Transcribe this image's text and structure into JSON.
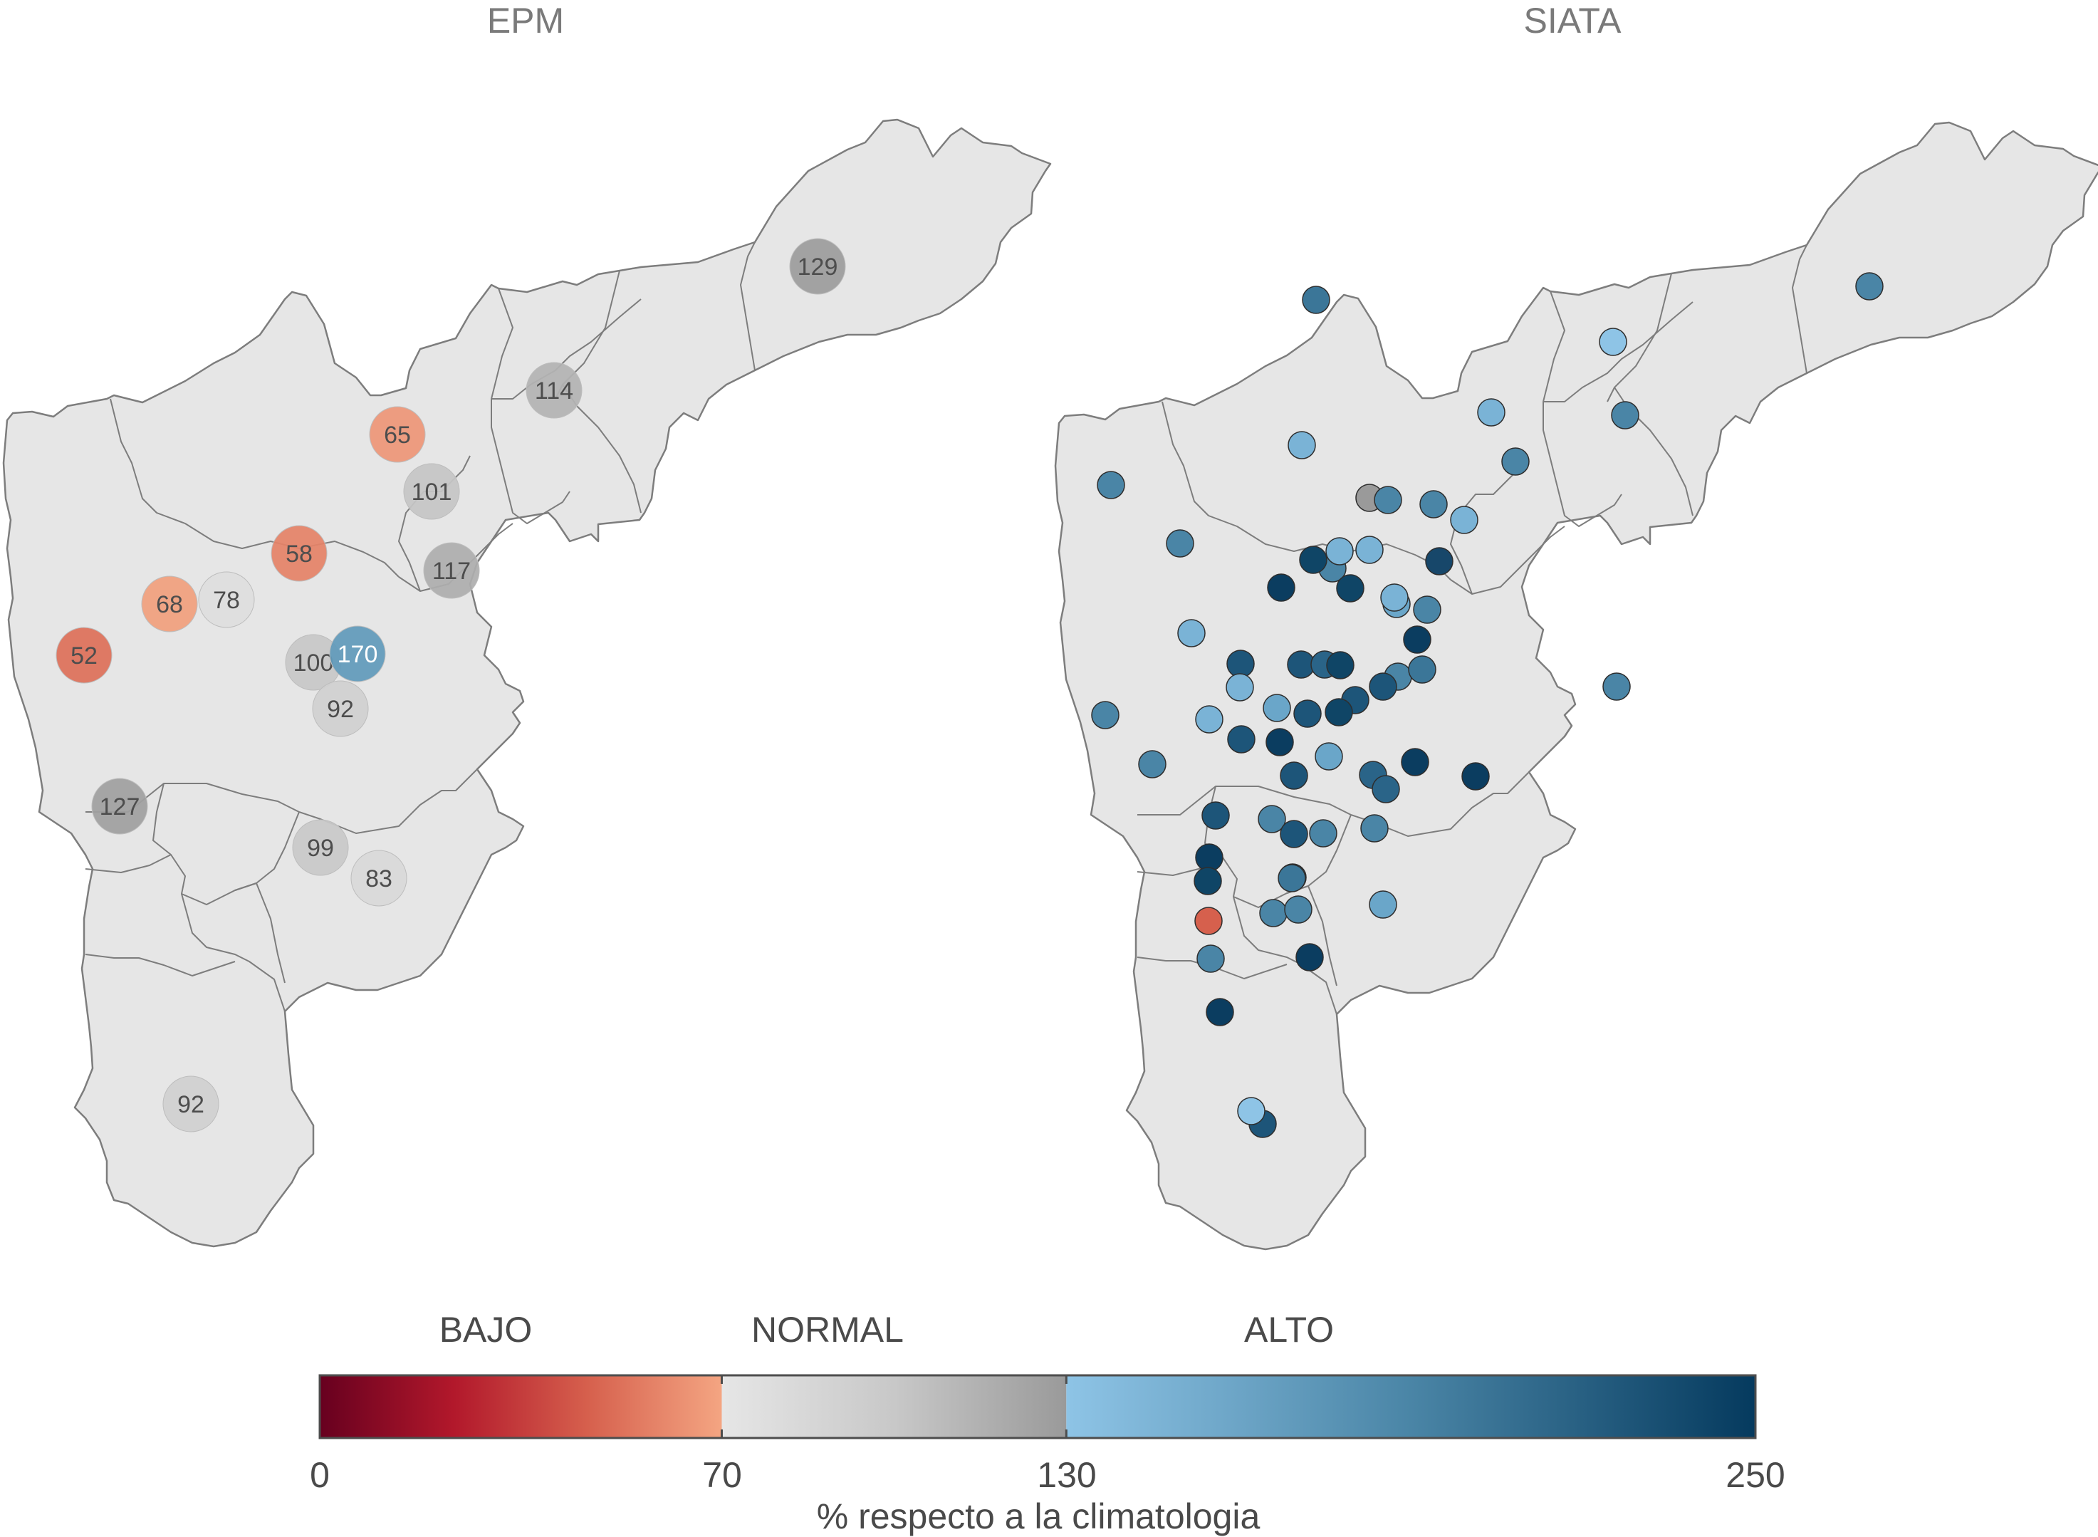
{
  "panels": {
    "left_title": "EPM",
    "right_title": "SIATA"
  },
  "legend": {
    "title": "% respecto a la climatologia",
    "categories": [
      "BAJO",
      "NORMAL",
      "ALTO"
    ],
    "ticks": [
      "0",
      "70",
      "130",
      "250"
    ],
    "segments": [
      {
        "from": 0,
        "to": 70,
        "colors": [
          "#67001f",
          "#b2182b",
          "#d6604d",
          "#f4a582"
        ]
      },
      {
        "from": 70,
        "to": 130,
        "colors": [
          "#e6e6e6",
          "#c8c8c8",
          "#9a9a9a"
        ]
      },
      {
        "from": 130,
        "to": 250,
        "colors": [
          "#8ec4e6",
          "#4a85a6",
          "#053a5e"
        ]
      }
    ]
  },
  "colors": {
    "region_fill": "#e6e6e6",
    "region_stroke": "#7d7d7d",
    "station_stroke": "#2e2e2e"
  },
  "epm_stations": [
    {
      "value": 129,
      "label": "129"
    },
    {
      "value": 114,
      "label": "114"
    },
    {
      "value": 65,
      "label": "65"
    },
    {
      "value": 101,
      "label": "101"
    },
    {
      "value": 58,
      "label": "58"
    },
    {
      "value": 117,
      "label": "117"
    },
    {
      "value": 68,
      "label": "68"
    },
    {
      "value": 78,
      "label": "78"
    },
    {
      "value": 52,
      "label": "52"
    },
    {
      "value": 100,
      "label": "100"
    },
    {
      "value": 170,
      "label": "170"
    },
    {
      "value": 92,
      "label": "92"
    },
    {
      "value": 127,
      "label": "127"
    },
    {
      "value": 99,
      "label": "99"
    },
    {
      "value": 83,
      "label": "83"
    },
    {
      "value": 92,
      "label": "92"
    }
  ],
  "siata_station_colors": [
    "#4a85a6",
    "#3b7698",
    "#8ec4e6",
    "#4a85a6",
    "#7ab3d6",
    "#4a85a6",
    "#7ab3d6",
    "#4a85a6",
    "#4a85a6",
    "#9a9a9a",
    "#4a85a6",
    "#4a85a6",
    "#7ab3d6",
    "#4a85a6",
    "#7ab3d6",
    "#7ab3d6",
    "#6aa6c9",
    "#0f4566",
    "#0f4566",
    "#17476a",
    "#0b3d60",
    "#7ab3d6",
    "#4a85a6",
    "#7ab3d6",
    "#0b3d60",
    "#1d5579",
    "#1d5579",
    "#2a6488",
    "#0f4566",
    "#4a85a6",
    "#1d5579",
    "#1d5579",
    "#3b7698",
    "#0f4566",
    "#4a85a6",
    "#4a85a6",
    "#6aa6c9",
    "#1d5579",
    "#7ab3d6",
    "#1d5579",
    "#0b3d60",
    "#7ab3d6",
    "#4a85a6",
    "#6aa6c9",
    "#1d5579",
    "#0b3d60",
    "#2a6488",
    "#2a6488",
    "#0b3d60",
    "#1d5579",
    "#4a85a6",
    "#1d5579",
    "#0b3d60",
    "#4a85a6",
    "#4a85a6",
    "#0f4566",
    "#0b3d60",
    "#d6604d",
    "#4a85a6",
    "#4a85a6",
    "#4a85a6",
    "#3b7698",
    "#0b3d60",
    "#1d5579",
    "#8ec4e6",
    "#6aa6c9",
    "#4a85a6"
  ]
}
